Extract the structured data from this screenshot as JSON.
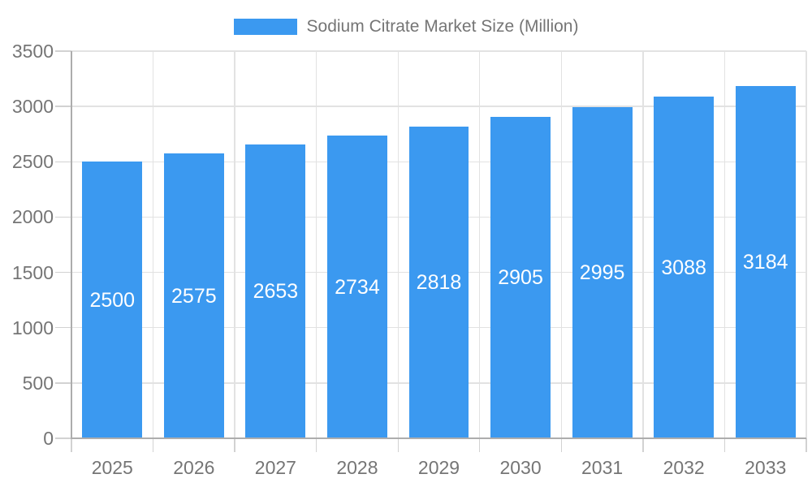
{
  "legend": {
    "label": "Sodium Citrate Market Size (Million)"
  },
  "colors": {
    "bar": "#3B99F0",
    "axis_text": "#757575",
    "grid_line": "#E2E2E2",
    "axis_line": "#ADADAD",
    "tick_line": "#D2D2D2",
    "value_text": "#FFFFFF",
    "background": "#FFFFFF"
  },
  "chart_data": {
    "type": "bar",
    "title": "Sodium Citrate Market Size (Million)",
    "legend_entries": [
      "Sodium Citrate Market Size (Million)"
    ],
    "legend_position": "top-center",
    "categories": [
      "2025",
      "2026",
      "2027",
      "2028",
      "2029",
      "2030",
      "2031",
      "2032",
      "2033"
    ],
    "values": [
      2500,
      2575,
      2653,
      2734,
      2818,
      2905,
      2995,
      3088,
      3184
    ],
    "value_labels_visible": true,
    "value_label_position": "inside-middle",
    "xlabel": "",
    "ylabel": "",
    "ylim": [
      0,
      3500
    ],
    "yticks": [
      0,
      500,
      1000,
      1500,
      2000,
      2500,
      3000,
      3500
    ],
    "grid": true
  }
}
